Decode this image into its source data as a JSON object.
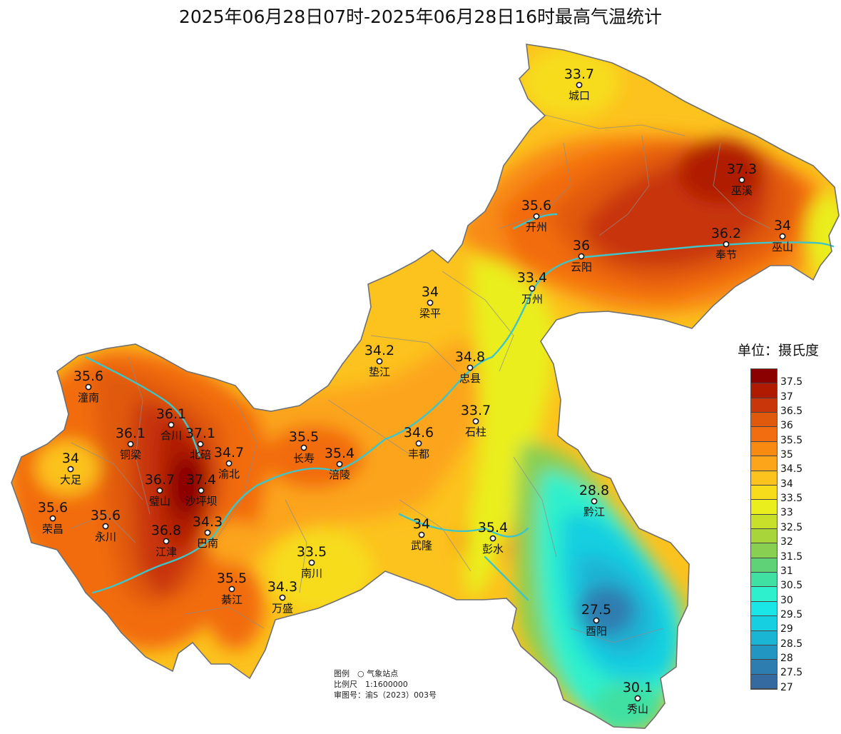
{
  "title": "2025年06月28日07时-2025年06月28日16时最高气温统计",
  "legend": {
    "unit_label": "单位：摄氏度",
    "classes": [
      {
        "label": "37.5",
        "color": "#8b0000"
      },
      {
        "label": "37",
        "color": "#b01a00"
      },
      {
        "label": "36.5",
        "color": "#c8360a"
      },
      {
        "label": "36",
        "color": "#e05a0d"
      },
      {
        "label": "35.5",
        "color": "#f26c10"
      },
      {
        "label": "35",
        "color": "#f88a12"
      },
      {
        "label": "34.5",
        "color": "#fca51a"
      },
      {
        "label": "34",
        "color": "#fcc21e"
      },
      {
        "label": "33.5",
        "color": "#f7dc1c"
      },
      {
        "label": "33",
        "color": "#eaee1c"
      },
      {
        "label": "32.5",
        "color": "#c8e02a"
      },
      {
        "label": "32",
        "color": "#a8d63a"
      },
      {
        "label": "31.5",
        "color": "#88cf52"
      },
      {
        "label": "31",
        "color": "#5fd278"
      },
      {
        "label": "30.5",
        "color": "#3fe0a2"
      },
      {
        "label": "30",
        "color": "#2ff0cc"
      },
      {
        "label": "29.5",
        "color": "#1ae6e8"
      },
      {
        "label": "29",
        "color": "#16cfe0"
      },
      {
        "label": "28.5",
        "color": "#1ab4d4"
      },
      {
        "label": "28",
        "color": "#2196c2"
      },
      {
        "label": "27.5",
        "color": "#2d7db0"
      },
      {
        "label": "27",
        "color": "#356aa0"
      }
    ]
  },
  "stations": [
    {
      "name": "城口",
      "value": "33.7"
    },
    {
      "name": "巫溪",
      "value": "37.3"
    },
    {
      "name": "开州",
      "value": "35.6"
    },
    {
      "name": "巫山",
      "value": "34"
    },
    {
      "name": "奉节",
      "value": "36.2"
    },
    {
      "name": "云阳",
      "value": "36"
    },
    {
      "name": "万州",
      "value": "33.4"
    },
    {
      "name": "梁平",
      "value": "34"
    },
    {
      "name": "垫江",
      "value": "34.2"
    },
    {
      "name": "忠县",
      "value": "34.8"
    },
    {
      "name": "潼南",
      "value": "35.6"
    },
    {
      "name": "合川",
      "value": "36.1"
    },
    {
      "name": "铜梁",
      "value": "36.1"
    },
    {
      "name": "北碚",
      "value": "37.1"
    },
    {
      "name": "渝北",
      "value": "34.7"
    },
    {
      "name": "长寿",
      "value": "35.5"
    },
    {
      "name": "涪陵",
      "value": "35.4"
    },
    {
      "name": "丰都",
      "value": "34.6"
    },
    {
      "name": "石柱",
      "value": "33.7"
    },
    {
      "name": "大足",
      "value": "34"
    },
    {
      "name": "璧山",
      "value": "36.7"
    },
    {
      "name": "沙坪坝",
      "value": "37.4"
    },
    {
      "name": "荣昌",
      "value": "35.6"
    },
    {
      "name": "永川",
      "value": "35.6"
    },
    {
      "name": "巴南",
      "value": "34.3"
    },
    {
      "name": "江津",
      "value": "36.8"
    },
    {
      "name": "黔江",
      "value": "28.8"
    },
    {
      "name": "武隆",
      "value": "34"
    },
    {
      "name": "彭水",
      "value": "35.4"
    },
    {
      "name": "南川",
      "value": "33.5"
    },
    {
      "name": "綦江",
      "value": "35.5"
    },
    {
      "name": "万盛",
      "value": "34.3"
    },
    {
      "name": "酉阳",
      "value": "27.5"
    },
    {
      "name": "秀山",
      "value": "30.1"
    }
  ],
  "notes": {
    "legend_line": "图例　○ 气象站点",
    "scale_line": "比例尺　1:1600000",
    "approval_line": "审图号：渝S（2023）003号"
  }
}
